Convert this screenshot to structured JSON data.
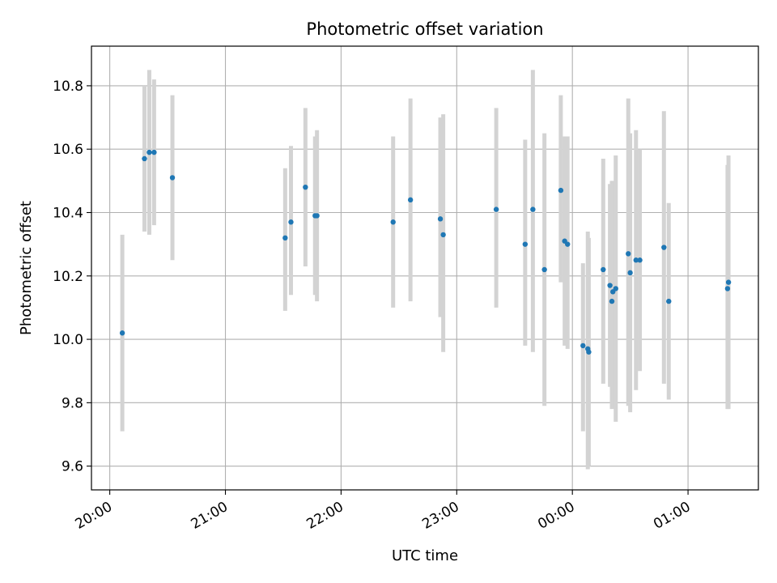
{
  "chart_data": {
    "type": "scatter",
    "title": "Photometric offset variation",
    "xlabel": "UTC time",
    "ylabel": "Photometric offset",
    "x_ticks": [
      "20:00",
      "21:00",
      "22:00",
      "23:00",
      "00:00",
      "01:00"
    ],
    "y_ticks": [
      "9.6",
      "9.8",
      "10.0",
      "10.2",
      "10.4",
      "10.6",
      "10.8"
    ],
    "xlim": [
      "19:50:30",
      "01:36:30"
    ],
    "ylim": [
      9.525,
      10.925
    ],
    "grid": true,
    "colors": {
      "point": "#1f77b4",
      "errorbar": "#d3d3d3",
      "grid": "#b0b0b0"
    },
    "series": [
      {
        "points": [
          {
            "t": "20:06:30",
            "y": 10.02,
            "lo": 9.71,
            "hi": 10.33
          },
          {
            "t": "20:18:00",
            "y": 10.57,
            "lo": 10.34,
            "hi": 10.8
          },
          {
            "t": "20:20:30",
            "y": 10.59,
            "lo": 10.33,
            "hi": 10.85
          },
          {
            "t": "20:23:00",
            "y": 10.59,
            "lo": 10.36,
            "hi": 10.82
          },
          {
            "t": "20:32:30",
            "y": 10.51,
            "lo": 10.25,
            "hi": 10.77
          },
          {
            "t": "21:31:00",
            "y": 10.32,
            "lo": 10.09,
            "hi": 10.54
          },
          {
            "t": "21:34:00",
            "y": 10.37,
            "lo": 10.14,
            "hi": 10.61
          },
          {
            "t": "21:41:30",
            "y": 10.48,
            "lo": 10.23,
            "hi": 10.73
          },
          {
            "t": "21:46:30",
            "y": 10.39,
            "lo": 10.14,
            "hi": 10.64
          },
          {
            "t": "21:47:30",
            "y": 10.39,
            "lo": 10.12,
            "hi": 10.66
          },
          {
            "t": "22:27:00",
            "y": 10.37,
            "lo": 10.1,
            "hi": 10.64
          },
          {
            "t": "22:36:00",
            "y": 10.44,
            "lo": 10.12,
            "hi": 10.76
          },
          {
            "t": "22:51:30",
            "y": 10.38,
            "lo": 10.07,
            "hi": 10.7
          },
          {
            "t": "22:53:00",
            "y": 10.33,
            "lo": 9.96,
            "hi": 10.71
          },
          {
            "t": "23:20:30",
            "y": 10.41,
            "lo": 10.1,
            "hi": 10.73
          },
          {
            "t": "23:35:30",
            "y": 10.3,
            "lo": 9.98,
            "hi": 10.63
          },
          {
            "t": "23:39:30",
            "y": 10.41,
            "lo": 9.96,
            "hi": 10.85
          },
          {
            "t": "23:45:30",
            "y": 10.22,
            "lo": 9.79,
            "hi": 10.65
          },
          {
            "t": "23:54:00",
            "y": 10.47,
            "lo": 10.18,
            "hi": 10.77
          },
          {
            "t": "23:56:00",
            "y": 10.31,
            "lo": 9.98,
            "hi": 10.64
          },
          {
            "t": "23:57:30",
            "y": 10.3,
            "lo": 9.97,
            "hi": 10.64
          },
          {
            "t": "00:05:30",
            "y": 9.98,
            "lo": 9.71,
            "hi": 10.24
          },
          {
            "t": "00:08:00",
            "y": 9.97,
            "lo": 9.59,
            "hi": 10.34
          },
          {
            "t": "00:08:30",
            "y": 9.96,
            "lo": 9.6,
            "hi": 10.32
          },
          {
            "t": "00:16:00",
            "y": 10.22,
            "lo": 9.86,
            "hi": 10.57
          },
          {
            "t": "00:19:30",
            "y": 10.17,
            "lo": 9.85,
            "hi": 10.49
          },
          {
            "t": "00:20:30",
            "y": 10.12,
            "lo": 9.78,
            "hi": 10.5
          },
          {
            "t": "00:21:00",
            "y": 10.15,
            "lo": 9.79,
            "hi": 10.5
          },
          {
            "t": "00:22:30",
            "y": 10.16,
            "lo": 9.74,
            "hi": 10.58
          },
          {
            "t": "00:29:00",
            "y": 10.27,
            "lo": 9.79,
            "hi": 10.76
          },
          {
            "t": "00:30:00",
            "y": 10.21,
            "lo": 9.77,
            "hi": 10.65
          },
          {
            "t": "00:33:00",
            "y": 10.25,
            "lo": 9.84,
            "hi": 10.66
          },
          {
            "t": "00:35:00",
            "y": 10.25,
            "lo": 9.9,
            "hi": 10.6
          },
          {
            "t": "00:47:30",
            "y": 10.29,
            "lo": 9.86,
            "hi": 10.72
          },
          {
            "t": "00:50:00",
            "y": 10.12,
            "lo": 9.81,
            "hi": 10.43
          },
          {
            "t": "01:20:30",
            "y": 10.16,
            "lo": 9.78,
            "hi": 10.55
          },
          {
            "t": "01:21:00",
            "y": 10.18,
            "lo": 9.78,
            "hi": 10.58
          }
        ]
      }
    ]
  }
}
